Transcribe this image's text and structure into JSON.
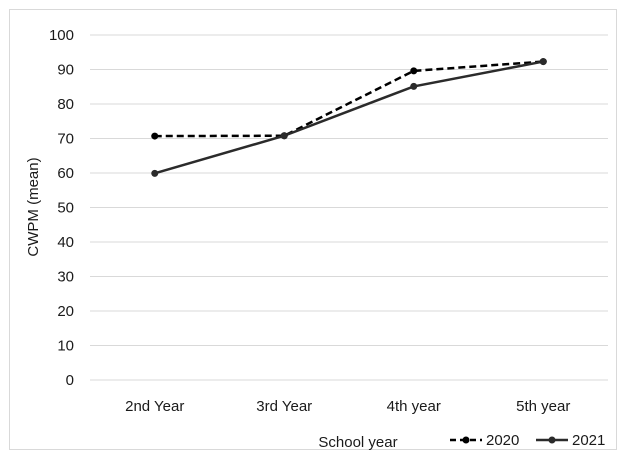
{
  "chart_data": {
    "type": "line",
    "title": "",
    "xlabel": "School year",
    "ylabel": "CWPM (mean)",
    "categories": [
      "2nd Year",
      "3rd Year",
      "4th year",
      "5th year"
    ],
    "ylim": [
      0,
      100
    ],
    "yticks": [
      "0",
      "10",
      "20",
      "30",
      "40",
      "50",
      "60",
      "70",
      "80",
      "90",
      "100"
    ],
    "grid": true,
    "legend_position": "bottom-right",
    "series": [
      {
        "name": "2020",
        "values": [
          70.7,
          70.8,
          89.6,
          92.3
        ],
        "style": "dashed",
        "color": "#000000"
      },
      {
        "name": "2021",
        "values": [
          59.9,
          70.8,
          85.1,
          92.3
        ],
        "style": "solid",
        "color": "#2b2b2b"
      }
    ]
  }
}
